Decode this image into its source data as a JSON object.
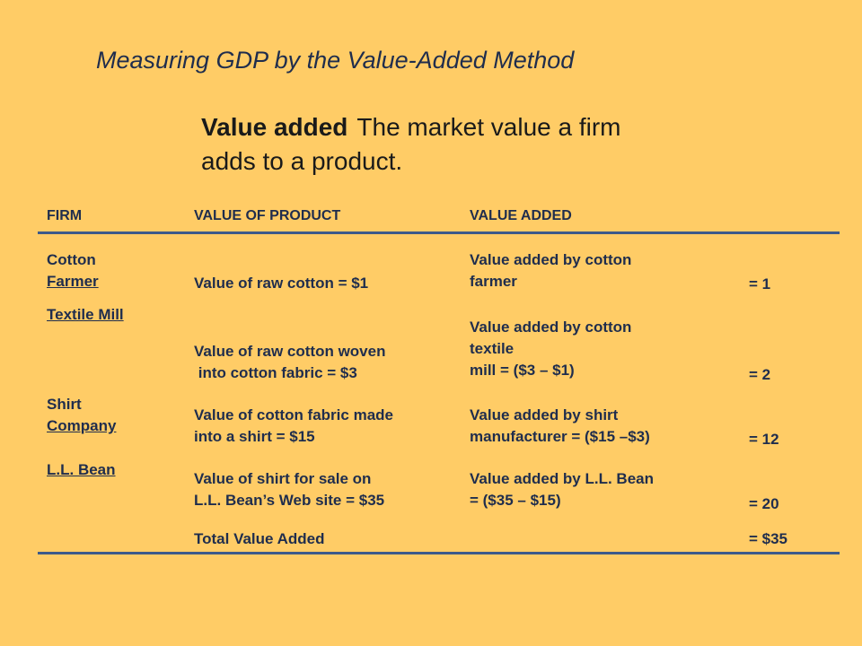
{
  "title": "Measuring GDP by the Value-Added Method",
  "definition": {
    "term": "Value added",
    "text": "The market value a firm adds to a product."
  },
  "table": {
    "headers": {
      "firm": "FIRM",
      "value_of_product": "VALUE OF PRODUCT",
      "value_added": "VALUE ADDED"
    },
    "rows": [
      {
        "firm": [
          "Cotton",
          "Farmer"
        ],
        "product": [
          "Value of raw cotton = $1"
        ],
        "added": [
          "Value added by cotton",
          "farmer"
        ],
        "amount": "= 1"
      },
      {
        "firm": [
          "Textile Mill"
        ],
        "product": [
          "Value of raw cotton woven",
          " into cotton fabric = $3"
        ],
        "added": [
          "Value added by cotton",
          "textile",
          "mill = ($3 – $1)"
        ],
        "amount": "= 2"
      },
      {
        "firm": [
          "Shirt",
          "Company"
        ],
        "product": [
          "Value of cotton fabric made",
          "into a shirt = $15"
        ],
        "added": [
          "Value added by shirt",
          "manufacturer = ($15 –$3)"
        ],
        "amount": "= 12"
      },
      {
        "firm": [
          "L.L. Bean"
        ],
        "product": [
          "Value of shirt for sale on",
          "L.L. Bean’s Web site = $35"
        ],
        "added": [
          "Value added by L.L. Bean",
          "= ($35 – $15)"
        ],
        "amount": "= 20"
      }
    ],
    "total": {
      "label": "Total Value Added",
      "amount": "= $35"
    }
  }
}
